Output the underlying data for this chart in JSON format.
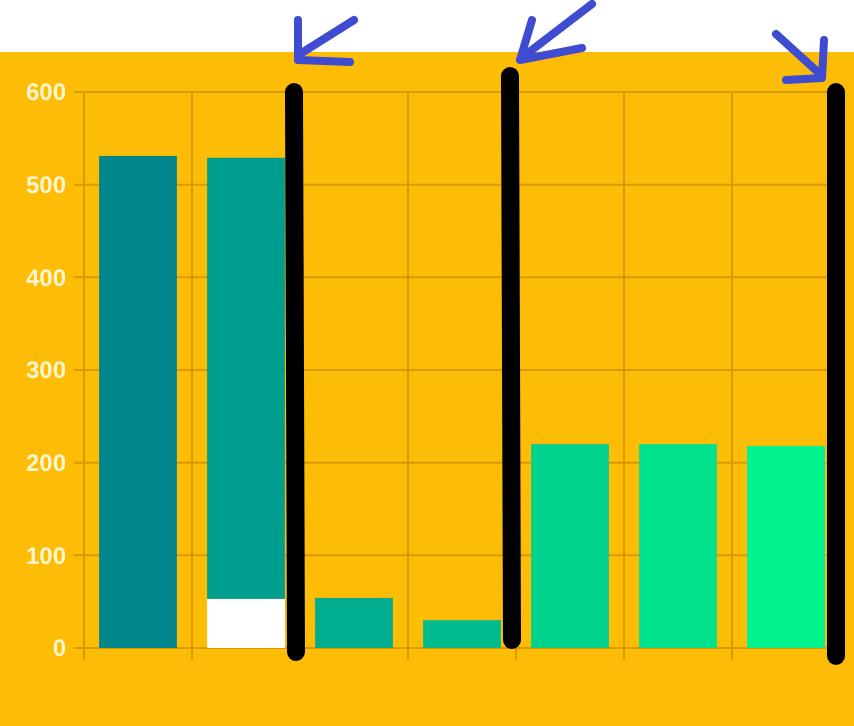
{
  "chart_data": {
    "type": "bar",
    "categories": [
      null,
      null,
      null,
      null,
      null,
      null,
      null
    ],
    "stacked": true,
    "series": [
      {
        "color": "#ffffff",
        "values": [
          null,
          53,
          null,
          null,
          null,
          null,
          null
        ]
      },
      {
        "colors": [
          "#00868b",
          "#009e8e",
          "#00ae8e",
          "#00bb8e",
          "#00d28e",
          "#00e28e",
          "#00f38e"
        ],
        "values": [
          531,
          476,
          54,
          30,
          220,
          220,
          218
        ]
      }
    ],
    "ylim": [
      0,
      600
    ],
    "yticks": [
      0,
      100,
      200,
      300,
      400,
      500,
      600
    ],
    "grid": true,
    "tick_labels": "y"
  }
}
